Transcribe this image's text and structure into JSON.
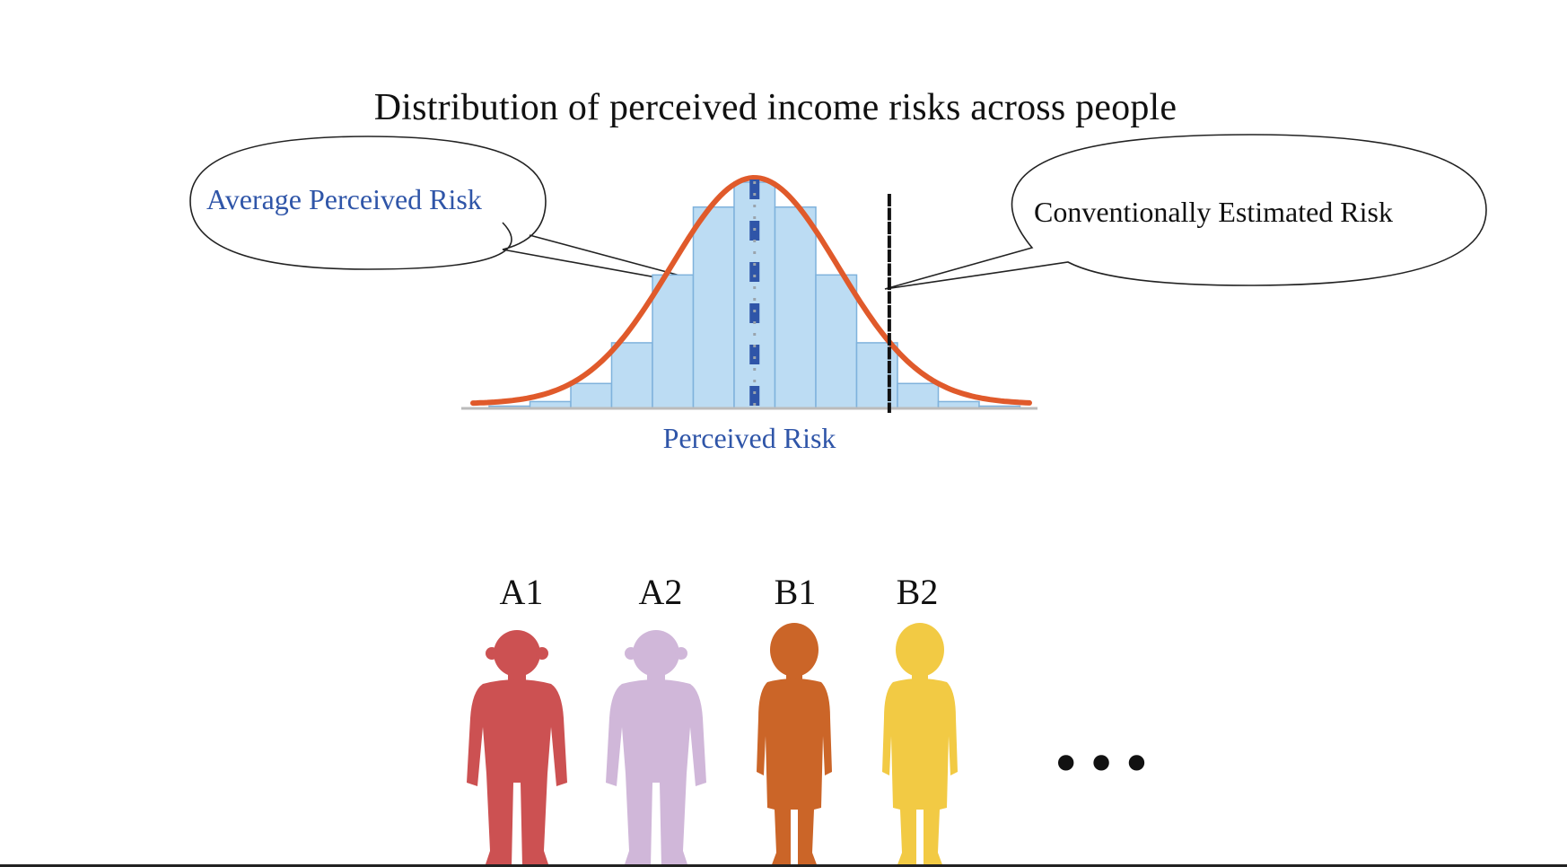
{
  "title": "Distribution of perceived income risks across people",
  "callouts": {
    "average": "Average Perceived Risk",
    "conventional": "Conventionally Estimated Risk"
  },
  "axis_label": "Perceived Risk",
  "people": [
    {
      "label": "A1",
      "color": "#cc5152",
      "figure": "boy-silhouette-icon"
    },
    {
      "label": "A2",
      "color": "#d0b7d9",
      "figure": "boy-silhouette-icon"
    },
    {
      "label": "B1",
      "color": "#cb6528",
      "figure": "girl-silhouette-icon"
    },
    {
      "label": "B2",
      "color": "#f2ca44",
      "figure": "girl-silhouette-icon"
    }
  ],
  "ellipsis": "•••",
  "colors": {
    "bars": "#bcdcf3",
    "bar_stroke": "#7fb2dc",
    "curve": "#e05a2b",
    "mean_line": "#2f55a8",
    "conventional_line": "#111111"
  },
  "chart_data": {
    "type": "bar",
    "bins": [
      1,
      2,
      3,
      4,
      5,
      6,
      7,
      8,
      9,
      10,
      11,
      12,
      13
    ],
    "values": [
      0.01,
      0.03,
      0.11,
      0.29,
      0.59,
      0.89,
      1.0,
      0.89,
      0.59,
      0.29,
      0.11,
      0.03,
      0.01
    ],
    "mean_bin": 7,
    "conventional_bin": 10.3
  }
}
